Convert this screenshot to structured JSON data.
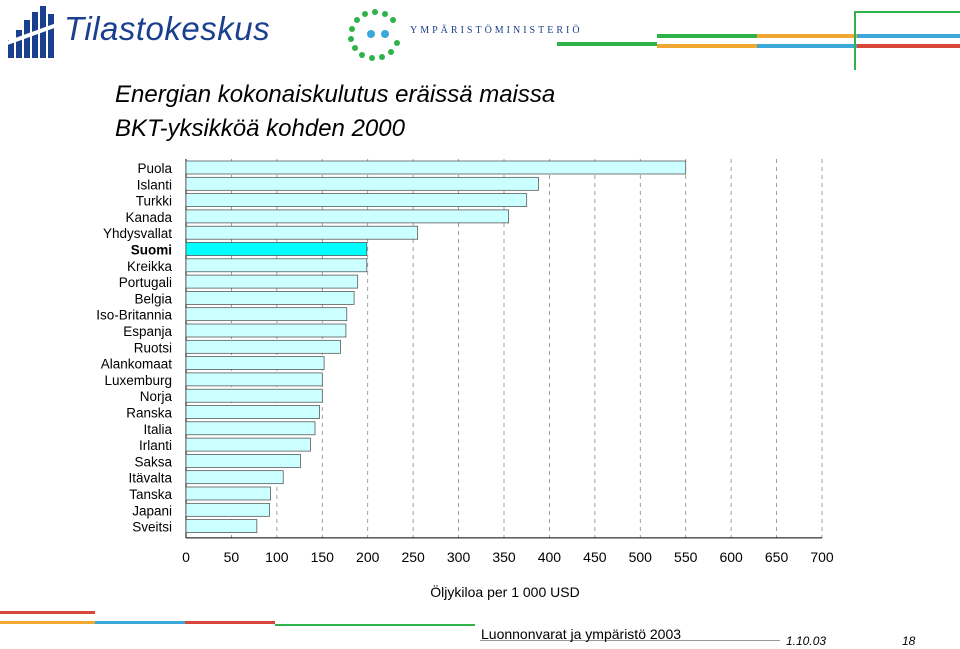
{
  "header": {
    "brand_left": "Tilastokeskus",
    "brand_right": "YMPÄRISTÖMINISTERIÖ"
  },
  "titles": {
    "line1": "Energian kokonaiskulutus eräissä maissa",
    "line2": "BKT-yksikköä kohden 2000"
  },
  "colors": {
    "bar_fill": "#ccffff",
    "highlight_fill": "#00ffff",
    "bar_stroke": "#444444",
    "brand_blue": "#1b3f8f",
    "logo_green": "#2db34a",
    "deco_orange": "#f0a830",
    "deco_blue": "#3aa8d8",
    "deco_red": "#d9463a"
  },
  "chart_data": {
    "type": "bar",
    "orientation": "horizontal",
    "categories": [
      "Puola",
      "Islanti",
      "Turkki",
      "Kanada",
      "Yhdysvallat",
      "Suomi",
      "Kreikka",
      "Portugali",
      "Belgia",
      "Iso-Britannia",
      "Espanja",
      "Ruotsi",
      "Alankomaat",
      "Luxemburg",
      "Norja",
      "Ranska",
      "Italia",
      "Irlanti",
      "Saksa",
      "Itävalta",
      "Tanska",
      "Japani",
      "Sveitsi"
    ],
    "values": [
      550,
      388,
      375,
      355,
      255,
      199,
      199,
      189,
      185,
      177,
      176,
      170,
      152,
      150,
      150,
      147,
      142,
      137,
      126,
      107,
      93,
      92,
      78
    ],
    "highlight": "Suomi",
    "xlabel": "Öljykiloa per 1 000 USD",
    "xlim": [
      0,
      700
    ],
    "xticks": [
      "0",
      "50",
      "100",
      "150",
      "200",
      "250",
      "300",
      "350",
      "400",
      "450",
      "500",
      "550",
      "600",
      "650",
      "700"
    ],
    "grid": "vertical dashed"
  },
  "footer": {
    "source": "Luonnonvarat ja ympäristö 2003",
    "date": "1.10.03",
    "page": "18"
  }
}
